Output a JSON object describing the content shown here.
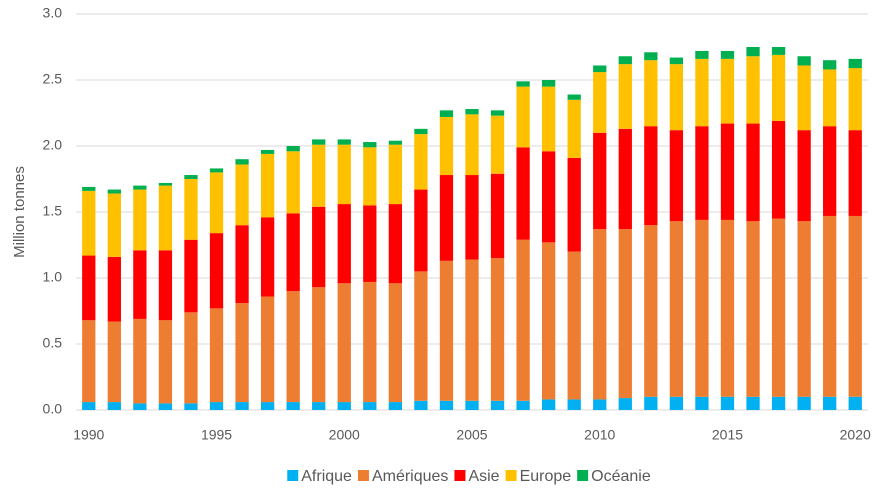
{
  "chart_data": {
    "type": "stacked_bar",
    "y_label": "Million tonnes",
    "categories": [
      "1990",
      null,
      null,
      null,
      null,
      "1995",
      null,
      null,
      null,
      null,
      "2000",
      null,
      null,
      null,
      null,
      "2005",
      null,
      null,
      null,
      null,
      "2010",
      null,
      null,
      null,
      null,
      "2015",
      null,
      null,
      null,
      null,
      "2020"
    ],
    "series": [
      {
        "name": "Afrique",
        "color": "#00b0f0",
        "values": [
          0.06,
          0.06,
          0.05,
          0.05,
          0.05,
          0.06,
          0.06,
          0.06,
          0.06,
          0.06,
          0.06,
          0.06,
          0.06,
          0.07,
          0.07,
          0.07,
          0.07,
          0.07,
          0.08,
          0.08,
          0.08,
          0.09,
          0.1,
          0.1,
          0.1,
          0.1,
          0.1,
          0.1,
          0.1,
          0.1,
          0.1
        ]
      },
      {
        "name": "Amériques",
        "color": "#ed7d31",
        "values": [
          0.62,
          0.61,
          0.64,
          0.63,
          0.69,
          0.71,
          0.75,
          0.8,
          0.84,
          0.87,
          0.9,
          0.91,
          0.9,
          0.98,
          1.06,
          1.07,
          1.08,
          1.22,
          1.19,
          1.12,
          1.29,
          1.28,
          1.3,
          1.33,
          1.34,
          1.34,
          1.33,
          1.35,
          1.33,
          1.37,
          1.37
        ]
      },
      {
        "name": "Asie",
        "color": "#ff0000",
        "values": [
          0.49,
          0.49,
          0.52,
          0.53,
          0.55,
          0.57,
          0.59,
          0.6,
          0.59,
          0.61,
          0.6,
          0.58,
          0.6,
          0.62,
          0.65,
          0.64,
          0.64,
          0.7,
          0.69,
          0.71,
          0.73,
          0.76,
          0.75,
          0.69,
          0.71,
          0.73,
          0.74,
          0.74,
          0.69,
          0.68,
          0.65
        ]
      },
      {
        "name": "Europe",
        "color": "#ffc000",
        "values": [
          0.49,
          0.48,
          0.46,
          0.49,
          0.46,
          0.46,
          0.46,
          0.48,
          0.47,
          0.47,
          0.45,
          0.44,
          0.45,
          0.42,
          0.44,
          0.46,
          0.44,
          0.46,
          0.49,
          0.44,
          0.46,
          0.49,
          0.5,
          0.5,
          0.51,
          0.49,
          0.51,
          0.5,
          0.49,
          0.43,
          0.47
        ]
      },
      {
        "name": "Océanie",
        "color": "#00b050",
        "values": [
          0.03,
          0.03,
          0.03,
          0.02,
          0.03,
          0.03,
          0.04,
          0.03,
          0.04,
          0.04,
          0.04,
          0.04,
          0.03,
          0.04,
          0.05,
          0.04,
          0.04,
          0.04,
          0.05,
          0.04,
          0.05,
          0.06,
          0.06,
          0.05,
          0.06,
          0.06,
          0.07,
          0.06,
          0.07,
          0.07,
          0.07
        ]
      }
    ],
    "ylim": [
      0,
      3
    ],
    "yticks": [
      {
        "value": 0,
        "label": "0.0"
      },
      {
        "value": 0.5,
        "label": "0.5"
      },
      {
        "value": 1,
        "label": "1.0"
      },
      {
        "value": 1.5,
        "label": "1.5"
      },
      {
        "value": 2,
        "label": "2.0"
      },
      {
        "value": 2.5,
        "label": "2.5"
      },
      {
        "value": 3,
        "label": "3.0"
      }
    ],
    "grid": true,
    "legend": "bottom"
  }
}
